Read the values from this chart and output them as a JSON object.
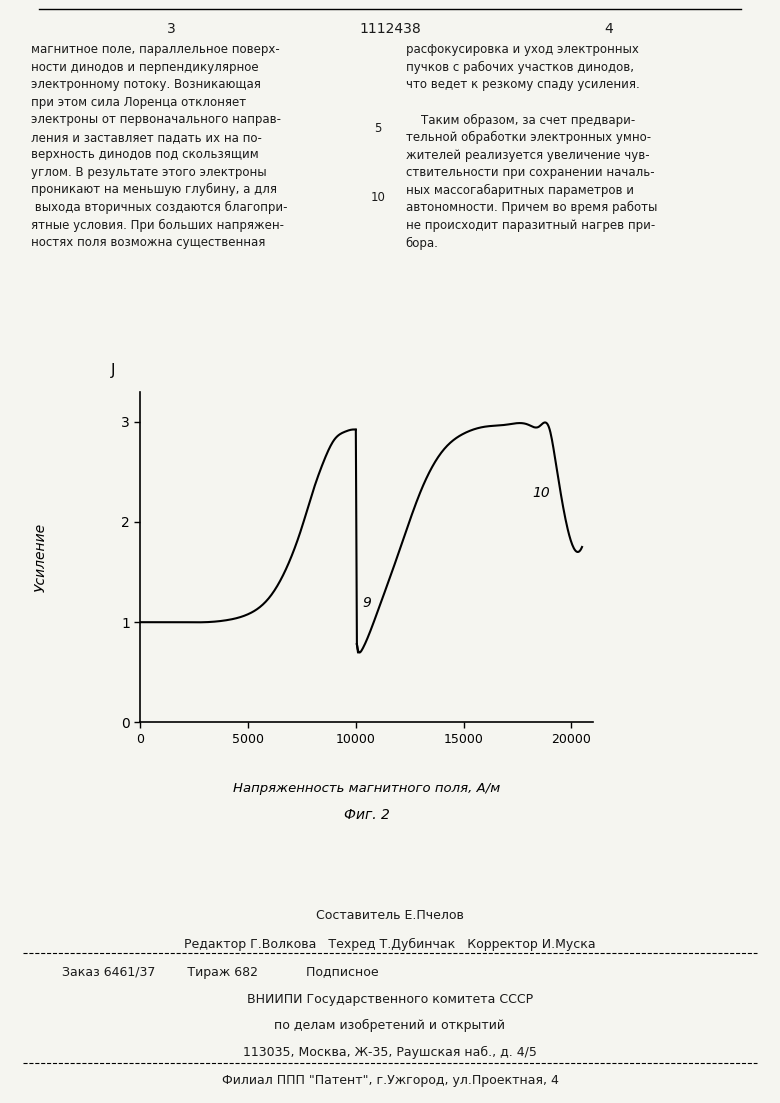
{
  "page_number_left": "3",
  "page_number_center": "1112438",
  "page_number_right": "4",
  "text_left": "магнитное поле, параллельное поверх-\nности динодов и перпендикулярное\nэлектронному потоку. Возникающая\nпри этом сила Лоренца отклоняет\nэлектроны от первоначального направ-\nления и заставляет падать их на по-\nверхность динодов под скользящим\nуглом. В результате этого электроны\nпроникают на меньшую глубину, а для\n выхода вторичных создаются благопри-\nятные условия. При больших напряжен-\nностях поля возможна существенная",
  "text_right": "расфокусировка и уход электронных\nпучков с рабочих участков динодов,\nчто ведет к резкому спаду усиления.\n\n    Таким образом, за счет предвари-\nтельной обработки электронных умно-\nжителей реализуется увеличение чув-\nствительности при сохранении началь-\nных массогабаритных параметров и\nавтономности. Причем во время работы\nне происходит паразитный нагрев при-\nбора.",
  "line_numbers_left": [
    "5",
    "10"
  ],
  "ylabel": "Усиление",
  "xlabel": "Напряженность магнитного поля, А/м",
  "fig_label": "Фиг. 2",
  "ytop_label": "J",
  "curve_label_9": "9",
  "curve_label_10": "10",
  "yticks": [
    0,
    1,
    2,
    3
  ],
  "xticks": [
    0,
    5000,
    10000,
    15000,
    20000
  ],
  "xlim": [
    0,
    21000
  ],
  "ylim": [
    0,
    3.3
  ],
  "curve_x": [
    0,
    500,
    1000,
    2000,
    3000,
    4000,
    5000,
    6000,
    7000,
    7500,
    8000,
    8500,
    9000,
    9500,
    9800,
    10000,
    10050,
    10100,
    10200,
    10300,
    10500,
    11000,
    12000,
    13000,
    14000,
    15000,
    16000,
    17000,
    18000,
    18500,
    19000,
    19200,
    19500,
    20000,
    20500
  ],
  "curve_y": [
    1.0,
    1.0,
    1.0,
    1.0,
    1.0,
    1.02,
    1.08,
    1.25,
    1.65,
    1.95,
    2.3,
    2.6,
    2.82,
    2.9,
    2.92,
    2.92,
    0.78,
    0.72,
    0.7,
    0.73,
    0.82,
    1.1,
    1.7,
    2.3,
    2.7,
    2.88,
    2.95,
    2.97,
    2.97,
    2.95,
    2.92,
    2.7,
    2.3,
    1.8,
    1.75
  ],
  "footer_line1": "Составитель Е.Пчелов",
  "footer_line2": "Редактор Г.Волкова   Техред Т.Дубинчак   Корректор И.Муска",
  "footer_line3": "Заказ 6461/37        Тираж 682            Подписное",
  "footer_line4": "ВНИИПИ Государственного комитета СССР",
  "footer_line5": "по делам изобретений и открытий",
  "footer_line6": "113035, Москва, Ж-35, Раушская наб., д. 4/5",
  "footer_line7": "Филиал ППП \"Патент\", г.Ужгород, ул.Проектная, 4",
  "bg_color": "#f5f5f0",
  "line_color": "#1a1a1a",
  "text_color": "#1a1a1a"
}
